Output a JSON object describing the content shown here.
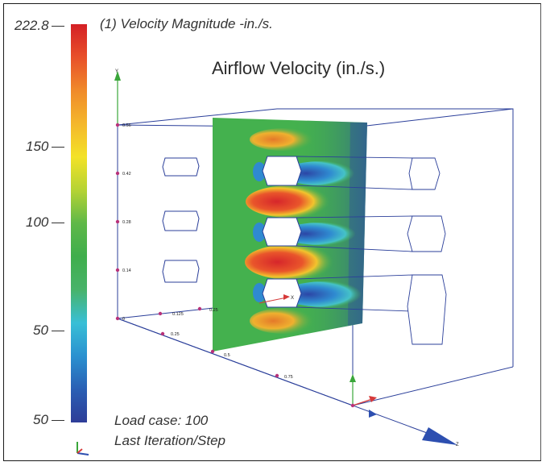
{
  "legend": {
    "header": "(1) Velocity Magnitude -in./s.",
    "labels": [
      "222.8",
      "150",
      "100",
      "50",
      "50"
    ],
    "gradient_colors": [
      "#d42025",
      "#e8502a",
      "#f08a2a",
      "#f4b72b",
      "#f3e227",
      "#b5d334",
      "#5fb848",
      "#3fae4c",
      "#48b36a",
      "#38bfd6",
      "#2a91d0",
      "#2a5fb4",
      "#2e3d98"
    ]
  },
  "title": "Airflow Velocity (in./s.)",
  "status": {
    "load_case": "Load case: 100",
    "iteration": "Last Iteration/Step"
  },
  "axes": {
    "y_label": "Y",
    "x_label": "X",
    "z_label": "Z",
    "y_ticks": [
      "0.56",
      "0.42",
      "0.28",
      "0.14",
      "0"
    ],
    "x_ticks": [
      "0.125",
      "0.25"
    ],
    "z_ticks": [
      "0.25",
      "0.5",
      "0.75"
    ]
  },
  "colors": {
    "box_line": "#2b3f9a",
    "plane_green": "#44b14e",
    "hot": "#d6262b",
    "cold": "#2c46a6",
    "marker": "#b8327a"
  }
}
